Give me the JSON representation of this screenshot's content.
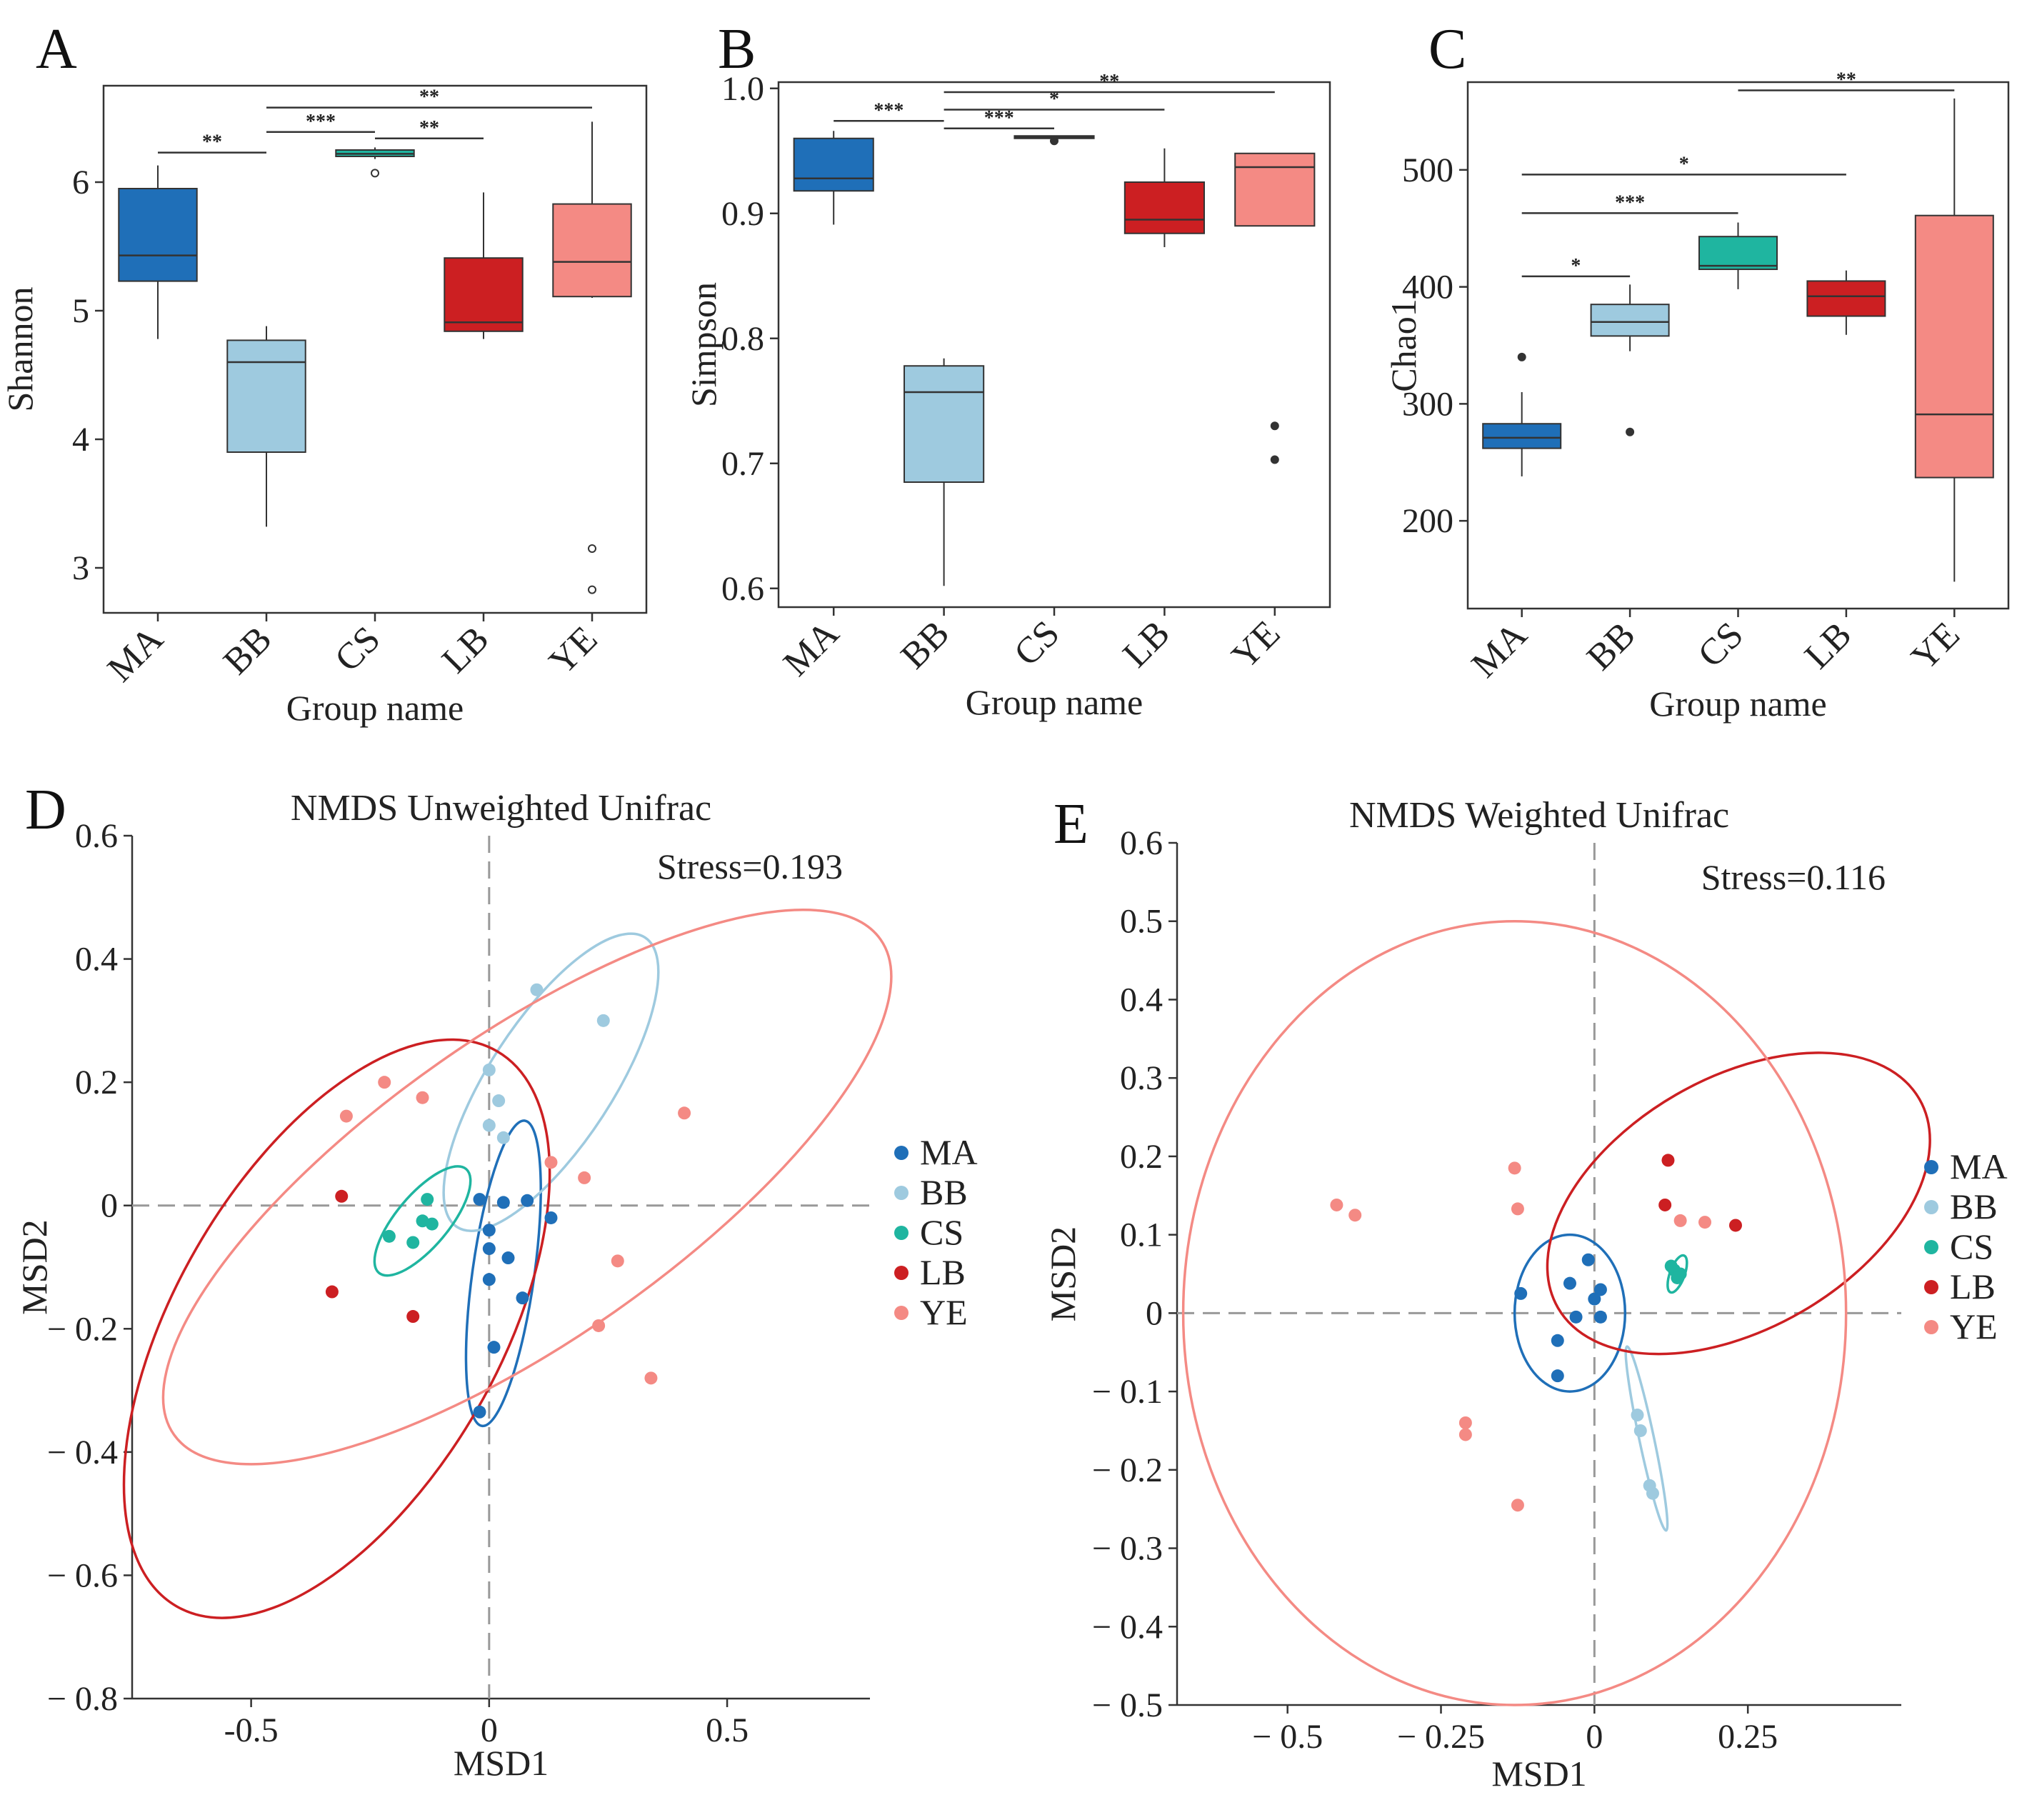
{
  "colors": {
    "MA": "#1f6fb8",
    "BB": "#9ecadf",
    "CS": "#1fb5a0",
    "LB": "#cc1f22",
    "YE": "#f48a84"
  },
  "chart_data": [
    {
      "type": "boxplot",
      "panel": "A",
      "xlabel": "Group name",
      "ylabel": "Shannon",
      "ylim": [
        2.65,
        6.75
      ],
      "yticks": [
        3,
        4,
        5,
        6
      ],
      "ytick_labels": [
        "3",
        "4",
        "5",
        "6"
      ],
      "categories": [
        "MA",
        "BB",
        "CS",
        "LB",
        "YE"
      ],
      "boxes": [
        {
          "group": "MA",
          "whislo": 4.78,
          "q1": 5.23,
          "med": 5.43,
          "q3": 5.95,
          "whishi": 6.13,
          "fliers": []
        },
        {
          "group": "BB",
          "whislo": 3.32,
          "q1": 3.9,
          "med": 4.6,
          "q3": 4.77,
          "whishi": 4.88,
          "fliers": []
        },
        {
          "group": "CS",
          "whislo": 6.18,
          "q1": 6.2,
          "med": 6.22,
          "q3": 6.25,
          "whishi": 6.27,
          "fliers": [
            6.07
          ]
        },
        {
          "group": "LB",
          "whislo": 4.78,
          "q1": 4.84,
          "med": 4.91,
          "q3": 5.41,
          "whishi": 5.92,
          "fliers": []
        },
        {
          "group": "YE",
          "whislo": 5.1,
          "q1": 5.11,
          "med": 5.38,
          "q3": 5.83,
          "whishi": 6.47,
          "fliers": [
            3.15,
            2.83
          ]
        }
      ],
      "significance": [
        {
          "from": "MA",
          "to": "BB",
          "y": 6.23,
          "label": "**"
        },
        {
          "from": "BB",
          "to": "CS",
          "y": 6.39,
          "label": "***"
        },
        {
          "from": "CS",
          "to": "LB",
          "y": 6.34,
          "label": "**"
        },
        {
          "from": "BB",
          "to": "YE",
          "y": 6.58,
          "label": "**"
        }
      ]
    },
    {
      "type": "boxplot",
      "panel": "B",
      "xlabel": "Group name",
      "ylabel": "Simpson",
      "ylim": [
        0.585,
        1.005
      ],
      "yticks": [
        0.6,
        0.7,
        0.8,
        0.9,
        1.0
      ],
      "ytick_labels": [
        "0.6",
        "0.7",
        "0.8",
        "0.9",
        "1.0"
      ],
      "categories": [
        "MA",
        "BB",
        "CS",
        "LB",
        "YE"
      ],
      "boxes": [
        {
          "group": "MA",
          "whislo": 0.891,
          "q1": 0.918,
          "med": 0.928,
          "q3": 0.96,
          "whishi": 0.966,
          "fliers": []
        },
        {
          "group": "BB",
          "whislo": 0.602,
          "q1": 0.685,
          "med": 0.757,
          "q3": 0.778,
          "whishi": 0.784,
          "fliers": []
        },
        {
          "group": "CS",
          "whislo": 0.96,
          "q1": 0.96,
          "med": 0.961,
          "q3": 0.962,
          "whishi": 0.962,
          "fliers": [
            0.958
          ]
        },
        {
          "group": "LB",
          "whislo": 0.873,
          "q1": 0.884,
          "med": 0.895,
          "q3": 0.925,
          "whishi": 0.952,
          "fliers": []
        },
        {
          "group": "YE",
          "whislo": 0.89,
          "q1": 0.89,
          "med": 0.937,
          "q3": 0.948,
          "whishi": 0.948,
          "fliers": [
            0.73,
            0.703
          ]
        }
      ],
      "significance": [
        {
          "from": "MA",
          "to": "BB",
          "y": 0.974,
          "label": "***"
        },
        {
          "from": "BB",
          "to": "CS",
          "y": 0.968,
          "label": "***"
        },
        {
          "from": "BB",
          "to": "LB",
          "y": 0.983,
          "label": "*"
        },
        {
          "from": "BB",
          "to": "YE",
          "y": 0.997,
          "label": "**"
        }
      ]
    },
    {
      "type": "boxplot",
      "panel": "C",
      "xlabel": "Group name",
      "ylabel": "Chao1",
      "ylim": [
        125,
        575
      ],
      "yticks": [
        200,
        300,
        400,
        500
      ],
      "ytick_labels": [
        "200",
        "300",
        "400",
        "500"
      ],
      "categories": [
        "MA",
        "BB",
        "CS",
        "LB",
        "YE"
      ],
      "boxes": [
        {
          "group": "MA",
          "whislo": 238,
          "q1": 262,
          "med": 271,
          "q3": 283,
          "whishi": 310,
          "fliers": [
            340
          ]
        },
        {
          "group": "BB",
          "whislo": 345,
          "q1": 358,
          "med": 370,
          "q3": 385,
          "whishi": 402,
          "fliers": [
            276
          ]
        },
        {
          "group": "CS",
          "whislo": 398,
          "q1": 415,
          "med": 418,
          "q3": 443,
          "whishi": 455,
          "fliers": []
        },
        {
          "group": "LB",
          "whislo": 359,
          "q1": 375,
          "med": 392,
          "q3": 405,
          "whishi": 414,
          "fliers": []
        },
        {
          "group": "YE",
          "whislo": 148,
          "q1": 237,
          "med": 291,
          "q3": 461,
          "whishi": 561,
          "fliers": []
        }
      ],
      "significance": [
        {
          "from": "MA",
          "to": "BB",
          "y": 409,
          "label": "*"
        },
        {
          "from": "MA",
          "to": "CS",
          "y": 463,
          "label": "***"
        },
        {
          "from": "MA",
          "to": "LB",
          "y": 496,
          "label": "*"
        },
        {
          "from": "CS",
          "to": "YE",
          "y": 568,
          "label": "**"
        }
      ]
    },
    {
      "type": "scatter",
      "panel": "D",
      "title": "NMDS Unweighted Unifrac",
      "stress": "Stress=0.193",
      "xlabel": "MSD1",
      "ylabel": "MSD2",
      "xlim": [
        -0.75,
        0.8
      ],
      "ylim": [
        -0.8,
        0.6
      ],
      "xticks": [
        -0.5,
        0,
        0.5
      ],
      "xtick_labels": [
        "-0.5",
        "0",
        "0.5"
      ],
      "yticks": [
        0.6,
        0.4,
        0.2,
        0,
        -0.2,
        -0.4,
        -0.6,
        -0.8
      ],
      "ytick_labels": [
        "0.6",
        "0.4",
        "0.2",
        "0",
        "− 0.2",
        "− 0.4",
        "− 0.6",
        "− 0.8"
      ],
      "series": [
        {
          "name": "MA",
          "x": [
            -0.02,
            0.03,
            0.08,
            0.13,
            0.0,
            0.0,
            0.04,
            0.07,
            0.0,
            -0.02,
            0.01
          ],
          "y": [
            0.01,
            0.005,
            0.008,
            -0.02,
            -0.04,
            -0.07,
            -0.085,
            -0.15,
            -0.12,
            -0.335,
            -0.23
          ]
        },
        {
          "name": "BB",
          "x": [
            0.1,
            0.24,
            0.0,
            0.02,
            0.0,
            0.03
          ],
          "y": [
            0.35,
            0.3,
            0.22,
            0.17,
            0.13,
            0.11
          ]
        },
        {
          "name": "CS",
          "x": [
            -0.13,
            -0.21,
            -0.14,
            -0.12,
            -0.16
          ],
          "y": [
            0.01,
            -0.05,
            -0.025,
            -0.03,
            -0.06
          ]
        },
        {
          "name": "LB",
          "x": [
            -0.31,
            -0.33,
            -0.16
          ],
          "y": [
            0.015,
            -0.14,
            -0.18
          ]
        },
        {
          "name": "YE",
          "x": [
            -0.22,
            -0.14,
            -0.3,
            0.13,
            0.2,
            0.41,
            0.27,
            0.23,
            0.34
          ],
          "y": [
            0.2,
            0.175,
            0.145,
            0.07,
            0.045,
            0.15,
            -0.09,
            -0.195,
            -0.28
          ]
        }
      ],
      "ellipses": [
        {
          "group": "MA",
          "cx": 0.03,
          "cy": -0.11,
          "rx": 0.065,
          "ry": 0.25,
          "angle_deg": 8
        },
        {
          "group": "BB",
          "cx": 0.13,
          "cy": 0.2,
          "rx": 0.13,
          "ry": 0.28,
          "angle_deg": 33
        },
        {
          "group": "CS",
          "cx": -0.14,
          "cy": -0.025,
          "rx": 0.055,
          "ry": 0.11,
          "angle_deg": 40
        },
        {
          "group": "LB",
          "cx": -0.32,
          "cy": -0.2,
          "rx": 0.34,
          "ry": 0.52,
          "angle_deg": 30
        },
        {
          "group": "YE",
          "cx": 0.08,
          "cy": 0.03,
          "rx": 0.32,
          "ry": 0.7,
          "angle_deg": 55
        }
      ],
      "legend": [
        "MA",
        "BB",
        "CS",
        "LB",
        "YE"
      ]
    },
    {
      "type": "scatter",
      "panel": "E",
      "title": "NMDS Weighted Unifrac",
      "stress": "Stress=0.116",
      "xlabel": "MSD1",
      "ylabel": "MSD2",
      "xlim": [
        -0.68,
        0.5
      ],
      "ylim": [
        -0.5,
        0.6
      ],
      "xticks": [
        -0.5,
        -0.25,
        0,
        0.25
      ],
      "xtick_labels": [
        "− 0.5",
        "− 0.25",
        "0",
        "0.25"
      ],
      "yticks": [
        0.6,
        0.5,
        0.4,
        0.3,
        0.2,
        0.1,
        0,
        -0.1,
        -0.2,
        -0.3,
        -0.4,
        -0.5
      ],
      "ytick_labels": [
        "0.6",
        "0.5",
        "0.4",
        "0.3",
        "0.2",
        "0.1",
        "0",
        "− 0.1",
        "− 0.2",
        "− 0.3",
        "− 0.4",
        "− 0.5"
      ],
      "series": [
        {
          "name": "MA",
          "x": [
            -0.12,
            -0.01,
            -0.04,
            0.01,
            -0.03,
            0.0,
            0.01,
            -0.06,
            -0.06
          ],
          "y": [
            0.025,
            0.068,
            0.038,
            0.03,
            -0.005,
            0.018,
            -0.005,
            -0.035,
            -0.08
          ]
        },
        {
          "name": "BB",
          "x": [
            0.07,
            0.075,
            0.09,
            0.095
          ],
          "y": [
            -0.13,
            -0.15,
            -0.22,
            -0.23
          ]
        },
        {
          "name": "CS",
          "x": [
            0.13,
            0.14,
            0.135,
            0.125
          ],
          "y": [
            0.055,
            0.05,
            0.045,
            0.06
          ]
        },
        {
          "name": "LB",
          "x": [
            0.12,
            0.115,
            0.23
          ],
          "y": [
            0.195,
            0.138,
            0.112
          ]
        },
        {
          "name": "YE",
          "x": [
            -0.42,
            -0.39,
            -0.13,
            -0.125,
            0.14,
            0.18,
            -0.21,
            -0.21,
            -0.125
          ],
          "y": [
            0.138,
            0.125,
            0.185,
            0.133,
            0.118,
            0.116,
            -0.14,
            -0.155,
            -0.245
          ]
        }
      ],
      "ellipses": [
        {
          "group": "MA",
          "cx": -0.04,
          "cy": 0.0,
          "rx": 0.09,
          "ry": 0.1,
          "angle_deg": 0
        },
        {
          "group": "BB",
          "cx": 0.085,
          "cy": -0.16,
          "rx": 0.012,
          "ry": 0.12,
          "angle_deg": -12
        },
        {
          "group": "CS",
          "cx": 0.135,
          "cy": 0.05,
          "rx": 0.012,
          "ry": 0.025,
          "angle_deg": 20
        },
        {
          "group": "LB",
          "cx": 0.235,
          "cy": 0.14,
          "rx": 0.34,
          "ry": 0.16,
          "angle_deg": -30
        },
        {
          "group": "YE",
          "cx": -0.13,
          "cy": 0.0,
          "rx": 0.54,
          "ry": 0.5,
          "angle_deg": 0
        }
      ],
      "legend": [
        "MA",
        "BB",
        "CS",
        "LB",
        "YE"
      ]
    }
  ]
}
